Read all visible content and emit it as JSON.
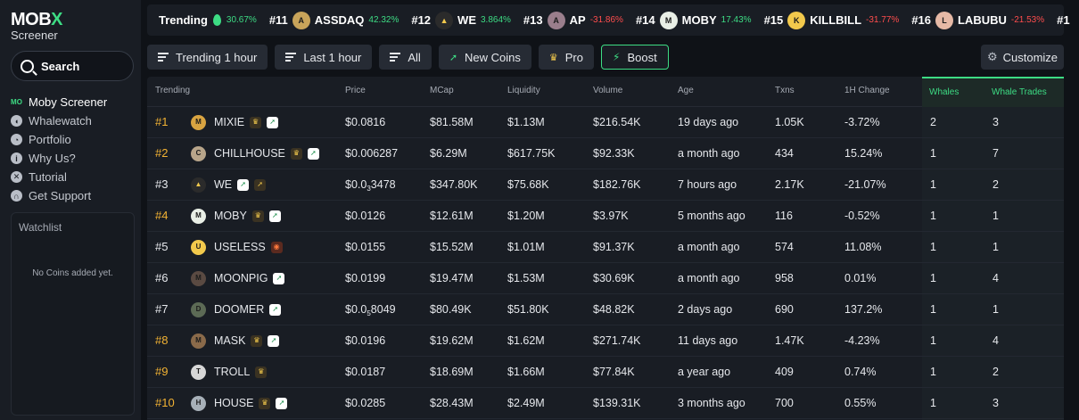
{
  "sidebar": {
    "logo_main_a": "MOB",
    "logo_main_b": "X",
    "logo_sub": "Screener",
    "search_label": "Search",
    "nav": [
      {
        "label": "Moby Screener",
        "icon": "moby-icon"
      },
      {
        "label": "Whalewatch",
        "icon": "whale-icon"
      },
      {
        "label": "Portfolio",
        "icon": "pie-chart-icon"
      },
      {
        "label": "Why Us?",
        "icon": "info-icon"
      },
      {
        "label": "Tutorial",
        "icon": "tutorial-icon"
      },
      {
        "label": "Get Support",
        "icon": "headset-icon"
      }
    ],
    "watchlist_title": "Watchlist",
    "watchlist_empty": "No Coins added yet."
  },
  "ticker": {
    "title": "Trending",
    "lead_pct": "30.67%",
    "items": [
      {
        "rank": "#11",
        "symbol": "ASSDAQ",
        "pct": "42.32%",
        "dir": "pos",
        "color": "#c8a45a",
        "glyph": "A"
      },
      {
        "rank": "#12",
        "symbol": "WE",
        "pct": "3.864%",
        "dir": "pos",
        "color": "#2b2b2b",
        "glyph": "▲"
      },
      {
        "rank": "#13",
        "symbol": "AP",
        "pct": "-31.86%",
        "dir": "neg",
        "color": "#9a7e8c",
        "glyph": "A"
      },
      {
        "rank": "#14",
        "symbol": "MOBY",
        "pct": "17.43%",
        "dir": "pos",
        "color": "#e9efe6",
        "glyph": "M"
      },
      {
        "rank": "#15",
        "symbol": "KILLBILL",
        "pct": "-31.77%",
        "dir": "neg",
        "color": "#f2c94c",
        "glyph": "K"
      },
      {
        "rank": "#16",
        "symbol": "LABUBU",
        "pct": "-21.53%",
        "dir": "neg",
        "color": "#e6b9a6",
        "glyph": "L"
      },
      {
        "rank": "#1",
        "symbol": "",
        "pct": "",
        "dir": "pos",
        "color": "#191d24",
        "glyph": ""
      }
    ]
  },
  "toolbar": {
    "trending": "Trending 1 hour",
    "last": "Last 1 hour",
    "all": "All",
    "new_coins": "New Coins",
    "pro": "Pro",
    "boost": "Boost",
    "customize": "Customize"
  },
  "table": {
    "headers": {
      "trending": "Trending",
      "price": "Price",
      "mcap": "MCap",
      "liquidity": "Liquidity",
      "volume": "Volume",
      "age": "Age",
      "txns": "Txns",
      "change": "1H Change",
      "whales": "Whales",
      "whale_trades": "Whale Trades"
    },
    "rows": [
      {
        "rank": "#1",
        "gold": true,
        "name": "MIXIE",
        "color": "#d9a441",
        "glyph": "M",
        "badges": [
          "crown",
          "boost"
        ],
        "price_a": "$0.0816",
        "price_sub": "",
        "price_b": "",
        "mcap": "$81.58M",
        "liq": "$1.13M",
        "vol": "$216.54K",
        "age": "19 days ago",
        "txns": "1.05K",
        "chg": "-3.72%",
        "dir": "neg",
        "whales": "2",
        "wt": "3"
      },
      {
        "rank": "#2",
        "gold": true,
        "name": "CHILLHOUSE",
        "color": "#b8a58a",
        "glyph": "C",
        "badges": [
          "crown",
          "boost"
        ],
        "price_a": "$0.006287",
        "price_sub": "",
        "price_b": "",
        "mcap": "$6.29M",
        "liq": "$617.75K",
        "vol": "$92.33K",
        "age": "a month ago",
        "txns": "434",
        "chg": "15.24%",
        "dir": "pos",
        "whales": "1",
        "wt": "7"
      },
      {
        "rank": "#3",
        "gold": false,
        "name": "WE",
        "color": "#2b2b2b",
        "glyph": "▲",
        "badges": [
          "boost",
          "rocket"
        ],
        "price_a": "$0.0",
        "price_sub": "3",
        "price_b": "3478",
        "mcap": "$347.80K",
        "liq": "$75.68K",
        "vol": "$182.76K",
        "age": "7 hours ago",
        "txns": "2.17K",
        "chg": "-21.07%",
        "dir": "neg",
        "whales": "1",
        "wt": "2"
      },
      {
        "rank": "#4",
        "gold": true,
        "name": "MOBY",
        "color": "#e9efe6",
        "glyph": "M",
        "badges": [
          "crown",
          "boost"
        ],
        "price_a": "$0.0126",
        "price_sub": "",
        "price_b": "",
        "mcap": "$12.61M",
        "liq": "$1.20M",
        "vol": "$3.97K",
        "age": "5 months ago",
        "txns": "116",
        "chg": "-0.52%",
        "dir": "neg",
        "whales": "1",
        "wt": "1"
      },
      {
        "rank": "#5",
        "gold": false,
        "name": "USELESS",
        "color": "#f2c94c",
        "glyph": "U",
        "badges": [
          "fire"
        ],
        "price_a": "$0.0155",
        "price_sub": "",
        "price_b": "",
        "mcap": "$15.52M",
        "liq": "$1.01M",
        "vol": "$91.37K",
        "age": "a month ago",
        "txns": "574",
        "chg": "11.08%",
        "dir": "pos",
        "whales": "1",
        "wt": "1"
      },
      {
        "rank": "#6",
        "gold": false,
        "name": "MOONPIG",
        "color": "#5a4a42",
        "glyph": "M",
        "badges": [
          "boost"
        ],
        "price_a": "$0.0199",
        "price_sub": "",
        "price_b": "",
        "mcap": "$19.47M",
        "liq": "$1.53M",
        "vol": "$30.69K",
        "age": "a month ago",
        "txns": "958",
        "chg": "0.01%",
        "dir": "pos",
        "whales": "1",
        "wt": "4"
      },
      {
        "rank": "#7",
        "gold": false,
        "name": "DOOMER",
        "color": "#5c6a55",
        "glyph": "D",
        "badges": [
          "boost"
        ],
        "price_a": "$0.0",
        "price_sub": "5",
        "price_b": "8049",
        "mcap": "$80.49K",
        "liq": "$51.80K",
        "vol": "$48.82K",
        "age": "2 days ago",
        "txns": "690",
        "chg": "137.2%",
        "dir": "pos",
        "whales": "1",
        "wt": "1"
      },
      {
        "rank": "#8",
        "gold": true,
        "name": "MASK",
        "color": "#8a6a4a",
        "glyph": "M",
        "badges": [
          "crown",
          "boost"
        ],
        "price_a": "$0.0196",
        "price_sub": "",
        "price_b": "",
        "mcap": "$19.62M",
        "liq": "$1.62M",
        "vol": "$271.74K",
        "age": "11 days ago",
        "txns": "1.47K",
        "chg": "-4.23%",
        "dir": "neg",
        "whales": "1",
        "wt": "4"
      },
      {
        "rank": "#9",
        "gold": true,
        "name": "TROLL",
        "color": "#d7d7d7",
        "glyph": "T",
        "badges": [
          "crown"
        ],
        "price_a": "$0.0187",
        "price_sub": "",
        "price_b": "",
        "mcap": "$18.69M",
        "liq": "$1.66M",
        "vol": "$77.84K",
        "age": "a year ago",
        "txns": "409",
        "chg": "0.74%",
        "dir": "pos",
        "whales": "1",
        "wt": "2"
      },
      {
        "rank": "#10",
        "gold": true,
        "name": "HOUSE",
        "color": "#a7b0b8",
        "glyph": "H",
        "badges": [
          "crown",
          "boost"
        ],
        "price_a": "$0.0285",
        "price_sub": "",
        "price_b": "",
        "mcap": "$28.43M",
        "liq": "$2.49M",
        "vol": "$139.31K",
        "age": "3 months ago",
        "txns": "700",
        "chg": "0.55%",
        "dir": "pos",
        "whales": "1",
        "wt": "3"
      }
    ]
  },
  "colors": {
    "accent": "#3ddc84",
    "negative": "#ff4d4d",
    "gold": "#f2b233"
  }
}
